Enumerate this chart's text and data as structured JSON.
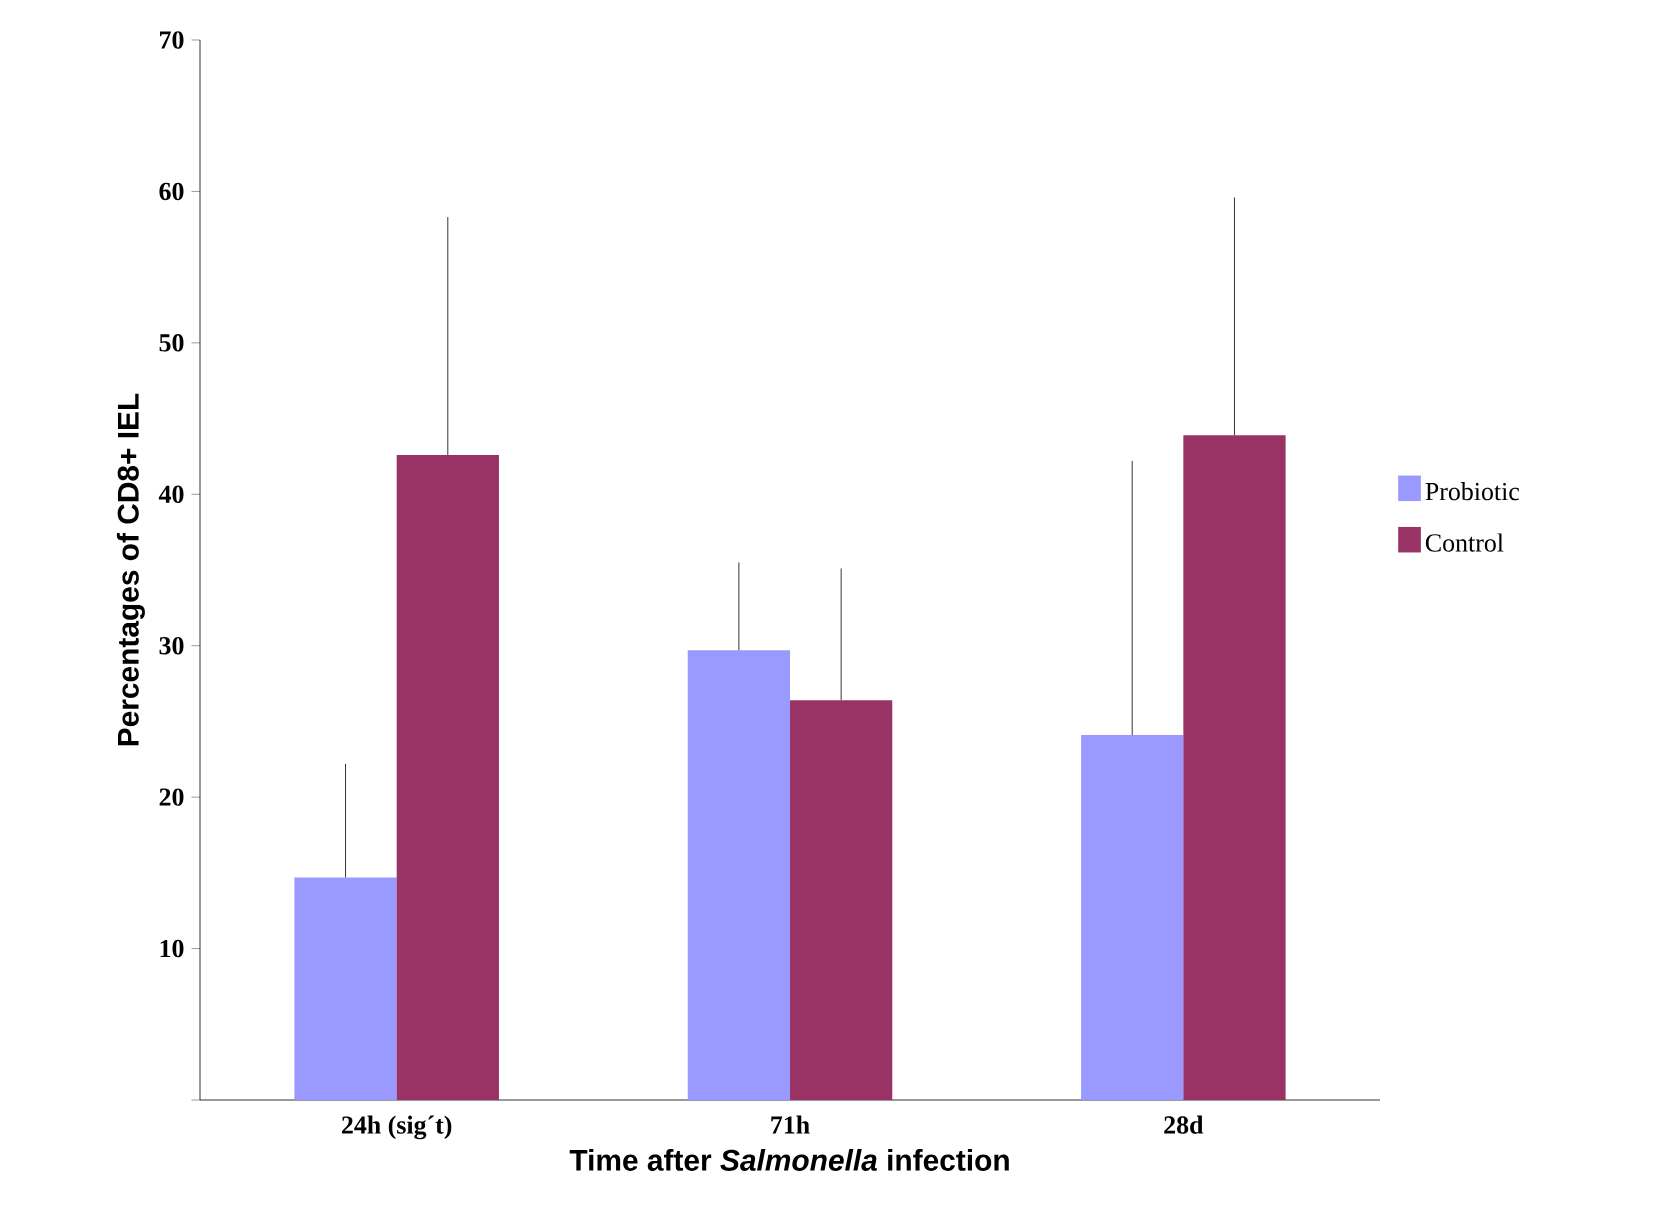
{
  "chart_data": {
    "type": "bar",
    "xlabel": "Time after *Salmonella* infection",
    "ylabel": "Percentages of CD8+ IEL",
    "categories": [
      "24h (sig´t)",
      "71h",
      "28d"
    ],
    "series": [
      {
        "name": "Probiotic",
        "color": "#9999ff",
        "values": [
          14.7,
          29.7,
          24.1
        ],
        "errors": [
          [
            14.7,
            22.2
          ],
          [
            29.7,
            35.5
          ],
          [
            24.1,
            42.2
          ]
        ]
      },
      {
        "name": "Control",
        "color": "#993366",
        "values": [
          42.6,
          26.4,
          43.9
        ],
        "errors": [
          [
            42.6,
            58.3
          ],
          [
            26.4,
            35.1
          ],
          [
            43.9,
            59.6
          ]
        ]
      }
    ],
    "ylim": [
      0,
      70
    ],
    "yticks": [
      {
        "value": 0,
        "label": null
      },
      10,
      20,
      30,
      40,
      50,
      60,
      70
    ],
    "grid": false,
    "legend": "right"
  }
}
